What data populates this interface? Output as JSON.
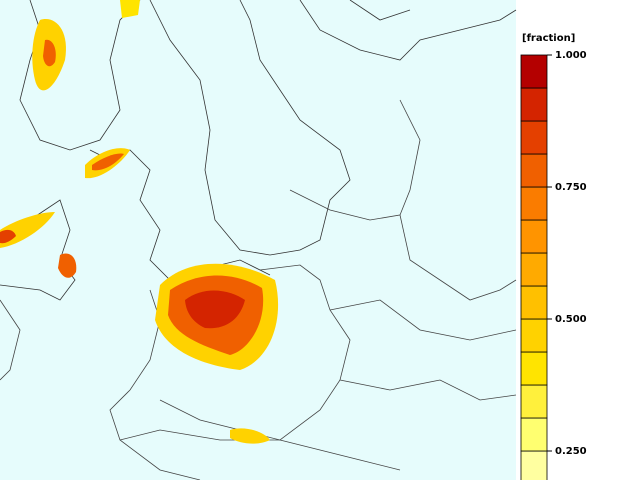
{
  "legend": {
    "title": "[fraction]",
    "lim": [
      0.1875,
      1.0
    ],
    "ticks": [
      {
        "value": 1.0,
        "label": "1.000"
      },
      {
        "value": 0.75,
        "label": "0.750"
      },
      {
        "value": 0.5,
        "label": "0.500"
      },
      {
        "value": 0.25,
        "label": "0.250"
      }
    ],
    "bins": [
      0.1875,
      0.25,
      0.3125,
      0.375,
      0.4375,
      0.5,
      0.5625,
      0.625,
      0.6875,
      0.75,
      0.8125,
      0.875,
      0.9375,
      1.0
    ],
    "colors": [
      "#ffffa0",
      "#ffff70",
      "#fff03c",
      "#ffe400",
      "#ffd200",
      "#ffc000",
      "#ffaa00",
      "#ff9400",
      "#fa7c00",
      "#f06000",
      "#e44000",
      "#d42400",
      "#b40000"
    ]
  }
}
